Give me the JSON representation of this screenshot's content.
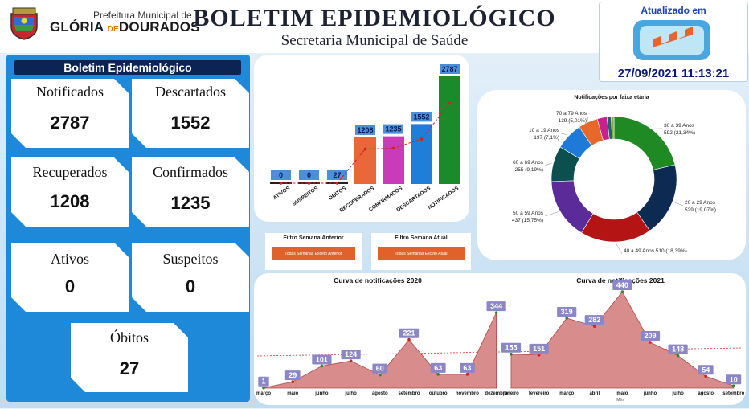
{
  "header": {
    "pref_small": "Prefeitura Municipal de",
    "pref_big_left": "GLÓRIA",
    "pref_big_de": "DE",
    "pref_big_right": "DOURADOS",
    "title": "BOLETIM EPIDEMIOLÓGICO",
    "subtitle": "Secretaria Municipal de Saúde",
    "updated_label": "Atualizado em",
    "updated_date": "27/09/2021 11:13:21"
  },
  "left": {
    "title": "Boletim Epidemiológico",
    "cards": [
      {
        "label": "Notificados",
        "value": "2787"
      },
      {
        "label": "Descartados",
        "value": "1552"
      },
      {
        "label": "Recuperados",
        "value": "1208"
      },
      {
        "label": "Confirmados",
        "value": "1235"
      },
      {
        "label": "Ativos",
        "value": "0"
      },
      {
        "label": "Suspeitos",
        "value": "0"
      },
      {
        "label": "Óbitos",
        "value": "27"
      }
    ]
  },
  "filters": {
    "previous": {
      "title": "Filtro Semana Anterior",
      "button": "Todas Semanas Exceto Anterior"
    },
    "current": {
      "title": "Filtro Semana Atual",
      "button": "Todas Semanas Exceto Atual"
    }
  },
  "colors": {
    "accent_blue": "#1e89d8",
    "navy": "#0c2454",
    "curve_fill": "#d98c8c",
    "curve_line": "#b04848"
  },
  "chart_data": [
    {
      "type": "bar",
      "title": "",
      "categories": [
        "ATIVOS",
        "SUSPEITOS",
        "ÓBITOS",
        "RECUPERADOS",
        "CONFIRMADOS",
        "DESCARTADOS",
        "NOTIFICADOS"
      ],
      "values": [
        0,
        0,
        27,
        1208,
        1235,
        1552,
        2787
      ],
      "labels": [
        "0",
        "0",
        "27",
        "1208",
        "1235",
        "1552",
        "2787"
      ],
      "colors": [
        "#3a78c8",
        "#3a78c8",
        "#3a78c8",
        "#e8683a",
        "#c93bb8",
        "#1f7fd8",
        "#1a8a2a"
      ],
      "trendline": true
    },
    {
      "type": "pie",
      "title": "Notificações por faixa etária",
      "slices": [
        {
          "label": "30 a 39 Anos",
          "value": 592,
          "pct": "21,34%",
          "text": "592 (21,34%)",
          "color": "#1f8a24"
        },
        {
          "label": "20 a 29 Anos",
          "value": 529,
          "pct": "19,07%",
          "text": "529 (19,07%)",
          "color": "#0d2a52"
        },
        {
          "label": "40 a 49 Anos",
          "value": 510,
          "pct": "18,39%",
          "text": "510 (18,39%)",
          "color": "#b51414"
        },
        {
          "label": "50 a 59 Anos",
          "value": 437,
          "pct": "15,75%",
          "text": "437 (15,75%)",
          "color": "#5b2b99"
        },
        {
          "label": "60 a 69 Anos",
          "value": 255,
          "pct": "9,19%",
          "text": "255 (9,19%)",
          "color": "#0b4f4f"
        },
        {
          "label": "10 a 19 Anos",
          "value": 197,
          "pct": "7,1%",
          "text": "197 (7,1%)",
          "color": "#1e7ad8"
        },
        {
          "label": "70 a 79 Anos",
          "value": 139,
          "pct": "5,01%",
          "text": "139 (5,01%)",
          "color": "#e8682a"
        },
        {
          "label": "",
          "value": 70,
          "color": "#c8208c"
        },
        {
          "label": "",
          "value": 30,
          "color": "#26606a"
        },
        {
          "label": "",
          "value": 20,
          "color": "#7fae3a"
        }
      ]
    },
    {
      "type": "area",
      "title": "Curva de notificações 2020",
      "x": [
        "março",
        "maio",
        "junho",
        "julho",
        "agosto",
        "setembro",
        "outubro",
        "novembro",
        "dezembro"
      ],
      "values": [
        1,
        29,
        101,
        124,
        60,
        221,
        63,
        63,
        344
      ]
    },
    {
      "type": "area",
      "title": "Curva de notificações 2021",
      "xlabel": "Mês",
      "x": [
        "janeiro",
        "fevereiro",
        "março",
        "abril",
        "maio",
        "junho",
        "julho",
        "agosto",
        "setembro"
      ],
      "values": [
        155,
        151,
        319,
        282,
        440,
        209,
        148,
        54,
        10
      ]
    }
  ]
}
